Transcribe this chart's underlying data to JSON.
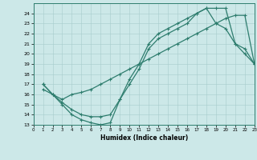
{
  "line1_x": [
    1,
    2,
    3,
    4,
    5,
    6,
    7,
    8,
    9,
    10,
    11,
    12,
    13,
    14,
    15,
    16,
    17,
    18,
    19,
    20,
    21,
    22,
    23
  ],
  "line1_y": [
    17,
    16,
    15,
    14,
    13.5,
    13.2,
    13,
    13.2,
    15.5,
    17.5,
    19,
    21,
    22,
    22.5,
    23,
    23.5,
    24,
    24.5,
    23,
    22.5,
    21,
    20,
    19
  ],
  "line2_x": [
    1,
    2,
    3,
    4,
    5,
    6,
    7,
    8,
    9,
    10,
    11,
    12,
    13,
    14,
    15,
    16,
    17,
    18,
    19,
    20,
    21,
    22,
    23
  ],
  "line2_y": [
    16.5,
    16,
    15.5,
    16,
    16.2,
    16.5,
    17,
    17.5,
    18,
    18.5,
    19,
    19.5,
    20,
    20.5,
    21,
    21.5,
    22,
    22.5,
    23,
    23.5,
    23.8,
    23.8,
    19
  ],
  "line3_x": [
    1,
    2,
    3,
    4,
    5,
    6,
    7,
    8,
    9,
    10,
    11,
    12,
    13,
    14,
    15,
    16,
    17,
    18,
    19,
    20,
    21,
    22,
    23
  ],
  "line3_y": [
    17,
    16,
    15.2,
    14.5,
    14,
    13.8,
    13.8,
    14,
    15.5,
    17,
    18.5,
    20.5,
    21.5,
    22,
    22.5,
    23,
    24,
    24.5,
    24.5,
    24.5,
    21,
    20.5,
    19
  ],
  "color": "#2e7d6e",
  "bg_color": "#cce8e8",
  "xlabel": "Humidex (Indice chaleur)",
  "xlim": [
    0,
    23
  ],
  "ylim": [
    13,
    25
  ],
  "xticks": [
    0,
    1,
    2,
    3,
    4,
    5,
    6,
    7,
    8,
    9,
    10,
    11,
    12,
    13,
    14,
    15,
    16,
    17,
    18,
    19,
    20,
    21,
    22,
    23
  ],
  "yticks": [
    13,
    14,
    15,
    16,
    17,
    18,
    19,
    20,
    21,
    22,
    23,
    24
  ]
}
